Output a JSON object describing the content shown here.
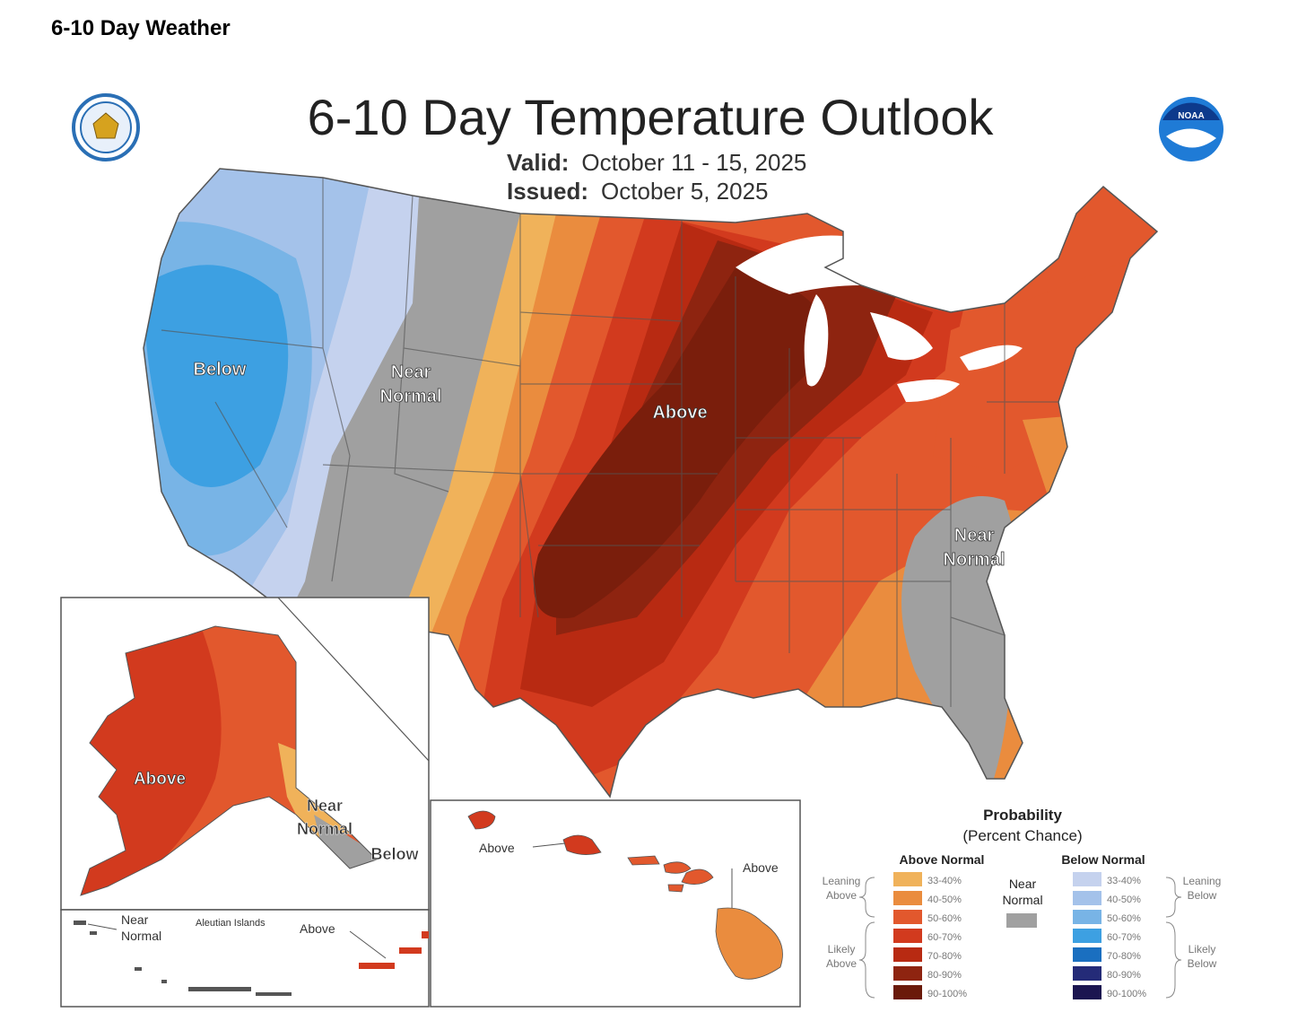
{
  "page": {
    "heading": "6-10 Day Weather"
  },
  "map": {
    "title": "6-10 Day Temperature Outlook",
    "valid_label": "Valid:",
    "valid_dates": "October 11 - 15, 2025",
    "issued_label": "Issued:",
    "issued_date": "October 5, 2025",
    "logos": [
      "doc-seal-icon",
      "noaa-logo-icon"
    ],
    "region_labels": {
      "below": "Below",
      "near_normal_west_1": "Near",
      "near_normal_west_2": "Normal",
      "above_central": "Above",
      "near_normal_se_1": "Near",
      "near_normal_se_2": "Normal",
      "alaska_above": "Above",
      "alaska_near_1": "Near",
      "alaska_near_2": "Normal",
      "alaska_below": "Below",
      "aleutian_near_1": "Near",
      "aleutian_near_2": "Normal",
      "aleutian_title": "Aleutian Islands",
      "aleutian_above": "Above",
      "hawaii_above_1": "Above",
      "hawaii_above_2": "Above"
    },
    "legend": {
      "title_1": "Probability",
      "title_2": "(Percent Chance)",
      "above_header": "Above Normal",
      "below_header": "Below Normal",
      "near_1": "Near",
      "near_2": "Normal",
      "leaning_above_1": "Leaning",
      "leaning_above_2": "Above",
      "likely_above_1": "Likely",
      "likely_above_2": "Above",
      "leaning_below_1": "Leaning",
      "leaning_below_2": "Below",
      "likely_below_1": "Likely",
      "likely_below_2": "Below",
      "near_color": "#a0a0a0",
      "above": [
        {
          "range": "33-40%",
          "color": "#f0b25a"
        },
        {
          "range": "40-50%",
          "color": "#ea8c3e"
        },
        {
          "range": "50-60%",
          "color": "#e2582d"
        },
        {
          "range": "60-70%",
          "color": "#d23a1e"
        },
        {
          "range": "70-80%",
          "color": "#b82a12"
        },
        {
          "range": "80-90%",
          "color": "#8e2410"
        },
        {
          "range": "90-100%",
          "color": "#6a1a0a"
        }
      ],
      "below": [
        {
          "range": "33-40%",
          "color": "#c5d2ee"
        },
        {
          "range": "40-50%",
          "color": "#a4c2ea"
        },
        {
          "range": "50-60%",
          "color": "#78b4e6"
        },
        {
          "range": "60-70%",
          "color": "#3da0e2"
        },
        {
          "range": "70-80%",
          "color": "#1a6fc0"
        },
        {
          "range": "80-90%",
          "color": "#242b78"
        },
        {
          "range": "90-100%",
          "color": "#1b1550"
        }
      ]
    }
  }
}
